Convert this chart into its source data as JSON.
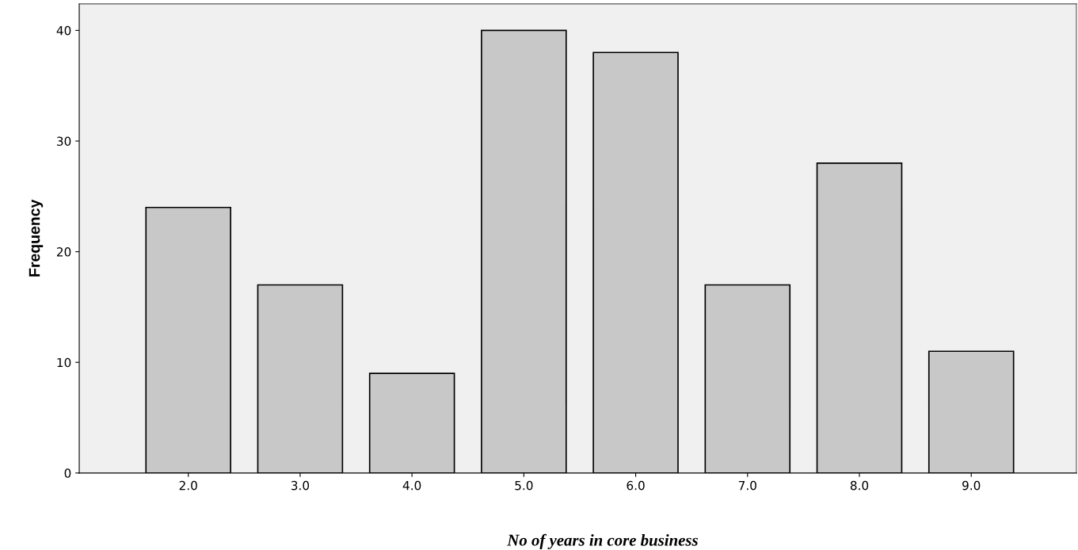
{
  "chart_data": {
    "type": "bar",
    "xlabel": "No of years in core business",
    "ylabel": "Frequency",
    "categories": [
      "2.0",
      "3.0",
      "4.0",
      "5.0",
      "6.0",
      "7.0",
      "8.0",
      "9.0"
    ],
    "values": [
      24,
      17,
      9,
      40,
      38,
      17,
      28,
      11
    ],
    "color": "#c8c8c8",
    "ylim": [
      0,
      42.4
    ],
    "yticks": [
      0,
      10,
      20,
      30,
      40
    ],
    "grid": false
  }
}
